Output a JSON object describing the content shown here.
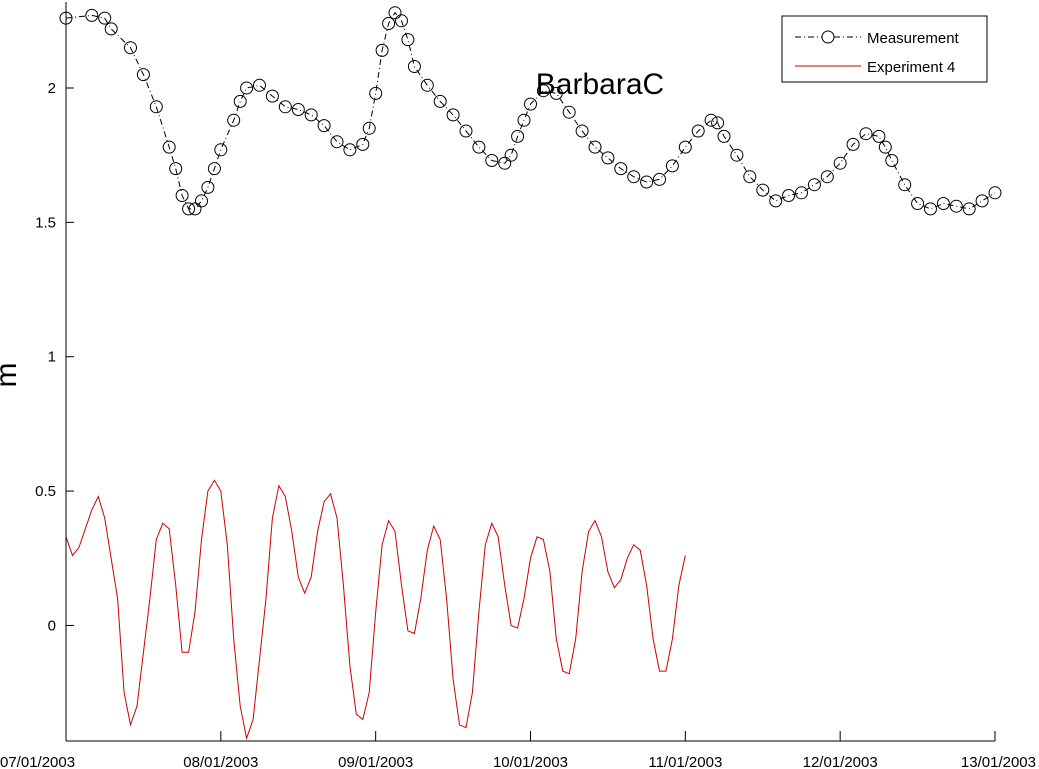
{
  "chart_data": {
    "type": "line",
    "title": "BarbaraC",
    "xlabel": "",
    "ylabel": "m",
    "xlim": [
      "07/01/2003",
      "13/01/2003"
    ],
    "ylim": [
      -0.43,
      2.32
    ],
    "grid": false,
    "legend_position": "top-right",
    "x_ticks": [
      "07/01/2003",
      "08/01/2003",
      "09/01/2003",
      "10/01/2003",
      "11/01/2003",
      "12/01/2003",
      "13/01/2003"
    ],
    "y_ticks": [
      0,
      0.5,
      1,
      1.5,
      2
    ],
    "y_tick_labels": [
      "0",
      "0.5",
      "1",
      "1.5",
      "2"
    ],
    "series": [
      {
        "name": "Measurement",
        "color": "#000000",
        "marker": "circle",
        "line_style": "dash-dot",
        "points": [
          [
            "07/01/2003 00:00",
            2.26
          ],
          [
            "07/01/2003 04:00",
            2.27
          ],
          [
            "07/01/2003 06:00",
            2.26
          ],
          [
            "07/01/2003 07:00",
            2.22
          ],
          [
            "07/01/2003 10:00",
            2.15
          ],
          [
            "07/01/2003 12:00",
            2.05
          ],
          [
            "07/01/2003 14:00",
            1.93
          ],
          [
            "07/01/2003 16:00",
            1.78
          ],
          [
            "07/01/2003 17:00",
            1.7
          ],
          [
            "07/01/2003 18:00",
            1.6
          ],
          [
            "07/01/2003 19:00",
            1.55
          ],
          [
            "07/01/2003 20:00",
            1.55
          ],
          [
            "07/01/2003 21:00",
            1.58
          ],
          [
            "07/01/2003 22:00",
            1.63
          ],
          [
            "07/01/2003 23:00",
            1.7
          ],
          [
            "08/01/2003 00:00",
            1.77
          ],
          [
            "08/01/2003 02:00",
            1.88
          ],
          [
            "08/01/2003 03:00",
            1.95
          ],
          [
            "08/01/2003 04:00",
            2.0
          ],
          [
            "08/01/2003 06:00",
            2.01
          ],
          [
            "08/01/2003 08:00",
            1.97
          ],
          [
            "08/01/2003 10:00",
            1.93
          ],
          [
            "08/01/2003 12:00",
            1.92
          ],
          [
            "08/01/2003 14:00",
            1.9
          ],
          [
            "08/01/2003 16:00",
            1.86
          ],
          [
            "08/01/2003 18:00",
            1.8
          ],
          [
            "08/01/2003 20:00",
            1.77
          ],
          [
            "08/01/2003 22:00",
            1.79
          ],
          [
            "08/01/2003 23:00",
            1.85
          ],
          [
            "09/01/2003 00:00",
            1.98
          ],
          [
            "09/01/2003 01:00",
            2.14
          ],
          [
            "09/01/2003 02:00",
            2.24
          ],
          [
            "09/01/2003 03:00",
            2.28
          ],
          [
            "09/01/2003 04:00",
            2.25
          ],
          [
            "09/01/2003 05:00",
            2.18
          ],
          [
            "09/01/2003 06:00",
            2.08
          ],
          [
            "09/01/2003 08:00",
            2.01
          ],
          [
            "09/01/2003 10:00",
            1.95
          ],
          [
            "09/01/2003 12:00",
            1.9
          ],
          [
            "09/01/2003 14:00",
            1.84
          ],
          [
            "09/01/2003 16:00",
            1.78
          ],
          [
            "09/01/2003 18:00",
            1.73
          ],
          [
            "09/01/2003 20:00",
            1.72
          ],
          [
            "09/01/2003 21:00",
            1.75
          ],
          [
            "09/01/2003 22:00",
            1.82
          ],
          [
            "09/01/2003 23:00",
            1.88
          ],
          [
            "10/01/2003 00:00",
            1.94
          ],
          [
            "10/01/2003 02:00",
            1.99
          ],
          [
            "10/01/2003 04:00",
            1.98
          ],
          [
            "10/01/2003 06:00",
            1.91
          ],
          [
            "10/01/2003 08:00",
            1.84
          ],
          [
            "10/01/2003 10:00",
            1.78
          ],
          [
            "10/01/2003 12:00",
            1.74
          ],
          [
            "10/01/2003 14:00",
            1.7
          ],
          [
            "10/01/2003 16:00",
            1.67
          ],
          [
            "10/01/2003 18:00",
            1.65
          ],
          [
            "10/01/2003 20:00",
            1.66
          ],
          [
            "10/01/2003 22:00",
            1.71
          ],
          [
            "11/01/2003 00:00",
            1.78
          ],
          [
            "11/01/2003 02:00",
            1.84
          ],
          [
            "11/01/2003 04:00",
            1.88
          ],
          [
            "11/01/2003 05:00",
            1.87
          ],
          [
            "11/01/2003 06:00",
            1.82
          ],
          [
            "11/01/2003 08:00",
            1.75
          ],
          [
            "11/01/2003 10:00",
            1.67
          ],
          [
            "11/01/2003 12:00",
            1.62
          ],
          [
            "11/01/2003 14:00",
            1.58
          ],
          [
            "11/01/2003 16:00",
            1.6
          ],
          [
            "11/01/2003 18:00",
            1.61
          ],
          [
            "11/01/2003 20:00",
            1.64
          ],
          [
            "11/01/2003 22:00",
            1.67
          ],
          [
            "12/01/2003 00:00",
            1.72
          ],
          [
            "12/01/2003 02:00",
            1.79
          ],
          [
            "12/01/2003 04:00",
            1.83
          ],
          [
            "12/01/2003 06:00",
            1.82
          ],
          [
            "12/01/2003 07:00",
            1.78
          ],
          [
            "12/01/2003 08:00",
            1.73
          ],
          [
            "12/01/2003 10:00",
            1.64
          ],
          [
            "12/01/2003 12:00",
            1.57
          ],
          [
            "12/01/2003 14:00",
            1.55
          ],
          [
            "12/01/2003 16:00",
            1.57
          ],
          [
            "12/01/2003 18:00",
            1.56
          ],
          [
            "12/01/2003 20:00",
            1.55
          ],
          [
            "12/01/2003 22:00",
            1.58
          ],
          [
            "13/01/2003 00:00",
            1.61
          ]
        ]
      },
      {
        "name": "Experiment 4",
        "color": "#cc0000",
        "marker": "none",
        "line_style": "solid",
        "points": [
          [
            "07/01/2003 00:00",
            0.33
          ],
          [
            "07/01/2003 01:00",
            0.26
          ],
          [
            "07/01/2003 02:00",
            0.29
          ],
          [
            "07/01/2003 03:00",
            0.36
          ],
          [
            "07/01/2003 04:00",
            0.43
          ],
          [
            "07/01/2003 05:00",
            0.48
          ],
          [
            "07/01/2003 06:00",
            0.4
          ],
          [
            "07/01/2003 08:00",
            0.1
          ],
          [
            "07/01/2003 09:00",
            -0.25
          ],
          [
            "07/01/2003 10:00",
            -0.37
          ],
          [
            "07/01/2003 11:00",
            -0.3
          ],
          [
            "07/01/2003 13:00",
            0.1
          ],
          [
            "07/01/2003 14:00",
            0.32
          ],
          [
            "07/01/2003 15:00",
            0.38
          ],
          [
            "07/01/2003 16:00",
            0.36
          ],
          [
            "07/01/2003 17:00",
            0.15
          ],
          [
            "07/01/2003 18:00",
            -0.1
          ],
          [
            "07/01/2003 19:00",
            -0.1
          ],
          [
            "07/01/2003 20:00",
            0.05
          ],
          [
            "07/01/2003 21:00",
            0.32
          ],
          [
            "07/01/2003 22:00",
            0.5
          ],
          [
            "07/01/2003 23:00",
            0.54
          ],
          [
            "08/01/2003 00:00",
            0.5
          ],
          [
            "08/01/2003 01:00",
            0.3
          ],
          [
            "08/01/2003 02:00",
            -0.05
          ],
          [
            "08/01/2003 03:00",
            -0.3
          ],
          [
            "08/01/2003 04:00",
            -0.42
          ],
          [
            "08/01/2003 05:00",
            -0.35
          ],
          [
            "08/01/2003 07:00",
            0.1
          ],
          [
            "08/01/2003 08:00",
            0.4
          ],
          [
            "08/01/2003 09:00",
            0.52
          ],
          [
            "08/01/2003 10:00",
            0.48
          ],
          [
            "08/01/2003 11:00",
            0.35
          ],
          [
            "08/01/2003 12:00",
            0.18
          ],
          [
            "08/01/2003 13:00",
            0.12
          ],
          [
            "08/01/2003 14:00",
            0.18
          ],
          [
            "08/01/2003 15:00",
            0.35
          ],
          [
            "08/01/2003 16:00",
            0.46
          ],
          [
            "08/01/2003 17:00",
            0.49
          ],
          [
            "08/01/2003 18:00",
            0.4
          ],
          [
            "08/01/2003 19:00",
            0.15
          ],
          [
            "08/01/2003 20:00",
            -0.15
          ],
          [
            "08/01/2003 21:00",
            -0.33
          ],
          [
            "08/01/2003 22:00",
            -0.35
          ],
          [
            "08/01/2003 23:00",
            -0.25
          ],
          [
            "09/01/2003 00:00",
            0.05
          ],
          [
            "09/01/2003 01:00",
            0.3
          ],
          [
            "09/01/2003 02:00",
            0.39
          ],
          [
            "09/01/2003 03:00",
            0.35
          ],
          [
            "09/01/2003 04:00",
            0.15
          ],
          [
            "09/01/2003 05:00",
            -0.02
          ],
          [
            "09/01/2003 06:00",
            -0.03
          ],
          [
            "09/01/2003 07:00",
            0.1
          ],
          [
            "09/01/2003 08:00",
            0.28
          ],
          [
            "09/01/2003 09:00",
            0.37
          ],
          [
            "09/01/2003 10:00",
            0.32
          ],
          [
            "09/01/2003 11:00",
            0.1
          ],
          [
            "09/01/2003 12:00",
            -0.2
          ],
          [
            "09/01/2003 13:00",
            -0.37
          ],
          [
            "09/01/2003 14:00",
            -0.38
          ],
          [
            "09/01/2003 15:00",
            -0.25
          ],
          [
            "09/01/2003 16:00",
            0.05
          ],
          [
            "09/01/2003 17:00",
            0.3
          ],
          [
            "09/01/2003 18:00",
            0.38
          ],
          [
            "09/01/2003 19:00",
            0.33
          ],
          [
            "09/01/2003 20:00",
            0.15
          ],
          [
            "09/01/2003 21:00",
            0.0
          ],
          [
            "09/01/2003 22:00",
            -0.01
          ],
          [
            "09/01/2003 23:00",
            0.1
          ],
          [
            "10/01/2003 00:00",
            0.25
          ],
          [
            "10/01/2003 01:00",
            0.33
          ],
          [
            "10/01/2003 02:00",
            0.32
          ],
          [
            "10/01/2003 03:00",
            0.2
          ],
          [
            "10/01/2003 04:00",
            -0.05
          ],
          [
            "10/01/2003 05:00",
            -0.17
          ],
          [
            "10/01/2003 06:00",
            -0.18
          ],
          [
            "10/01/2003 07:00",
            -0.05
          ],
          [
            "10/01/2003 08:00",
            0.2
          ],
          [
            "10/01/2003 09:00",
            0.35
          ],
          [
            "10/01/2003 10:00",
            0.39
          ],
          [
            "10/01/2003 11:00",
            0.33
          ],
          [
            "10/01/2003 12:00",
            0.2
          ],
          [
            "10/01/2003 13:00",
            0.14
          ],
          [
            "10/01/2003 14:00",
            0.17
          ],
          [
            "10/01/2003 15:00",
            0.25
          ],
          [
            "10/01/2003 16:00",
            0.3
          ],
          [
            "10/01/2003 17:00",
            0.28
          ],
          [
            "10/01/2003 18:00",
            0.15
          ],
          [
            "10/01/2003 19:00",
            -0.05
          ],
          [
            "10/01/2003 20:00",
            -0.17
          ],
          [
            "10/01/2003 21:00",
            -0.17
          ],
          [
            "10/01/2003 22:00",
            -0.05
          ],
          [
            "10/01/2003 23:00",
            0.15
          ],
          [
            "11/01/2003 00:00",
            0.26
          ]
        ]
      }
    ]
  }
}
